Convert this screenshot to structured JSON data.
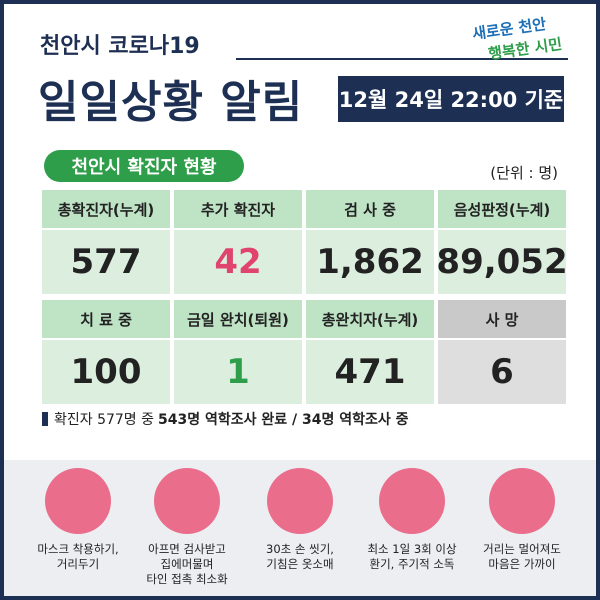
{
  "header": {
    "city_title": "천안시 코로나19",
    "main_title": "일일상황 알림",
    "date": "12월 24일 22:00 기준",
    "logo": [
      "새로운 천안",
      "행복한 시민"
    ]
  },
  "section": {
    "title": "천안시 확진자 현황",
    "unit": "(단위 : 명)"
  },
  "table": {
    "rows": [
      {
        "headers": [
          "총확진자(누계)",
          "추가 확진자",
          "검 사 중",
          "음성판정(누계)"
        ],
        "values": [
          "577",
          "42",
          "1,862",
          "89,052"
        ]
      },
      {
        "headers": [
          "치 료 중",
          "금일 완치(퇴원)",
          "총완치자(누계)",
          "사 망"
        ],
        "values": [
          "100",
          "1",
          "471",
          "6"
        ]
      }
    ]
  },
  "note": {
    "prefix": "확진자 577명 중",
    "bold": "543명 역학조사 완료 / 34명 역학조사 중"
  },
  "tips": [
    [
      "마스크 착용하기,",
      "거리두기"
    ],
    [
      "아프면 검사받고",
      "집에머물며",
      "타인 접촉 최소화"
    ],
    [
      "30초 손 씻기,",
      "기침은 옷소매"
    ],
    [
      "최소 1일 3회 이상",
      "환기, 주기적 소독"
    ],
    [
      "거리는 멀어져도",
      "마음은 가까이"
    ]
  ]
}
